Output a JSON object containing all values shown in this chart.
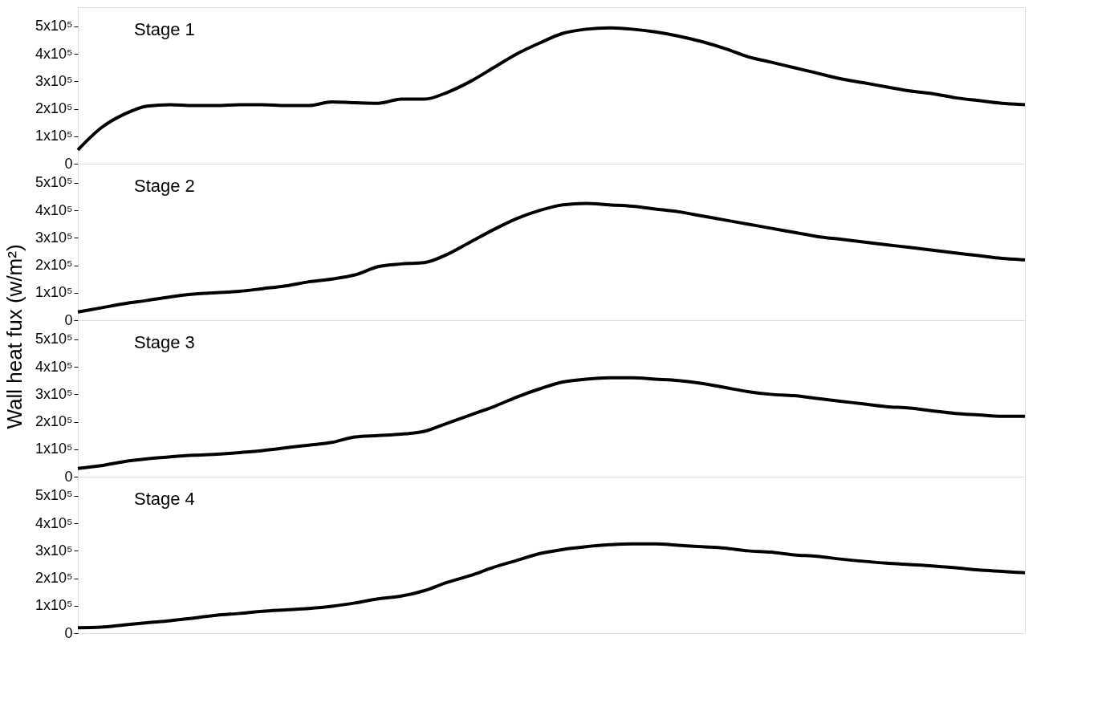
{
  "chart_data": [
    {
      "type": "line",
      "annotations": [
        "Stage 1"
      ],
      "tick_labels": "y",
      "ylim": [
        0,
        570000
      ],
      "yticks": [
        0,
        {
          "value": 100000,
          "label": "1x10⁵"
        },
        {
          "value": 200000,
          "label": "2x10⁵"
        },
        {
          "value": 300000,
          "label": "3x10⁵"
        },
        {
          "value": 400000,
          "label": "4x10⁵"
        },
        {
          "value": 500000,
          "label": "5x10⁵"
        }
      ],
      "categories": [
        null,
        null,
        null,
        null,
        null,
        null,
        null,
        null,
        null,
        null,
        null,
        null,
        null,
        null,
        null,
        null,
        null,
        null,
        null,
        null,
        null,
        null,
        null,
        null,
        null,
        null,
        null,
        null,
        null,
        null,
        null,
        null,
        null,
        null,
        null,
        null,
        null,
        null,
        null,
        null,
        null,
        null
      ],
      "series": [
        {
          "color": "#000000",
          "values": [
            50000,
            130000,
            180000,
            210000,
            215000,
            212000,
            212000,
            215000,
            215000,
            212000,
            212000,
            225000,
            222000,
            220000,
            235000,
            235000,
            260000,
            300000,
            350000,
            400000,
            440000,
            475000,
            490000,
            495000,
            490000,
            480000,
            465000,
            445000,
            420000,
            390000,
            370000,
            350000,
            330000,
            310000,
            295000,
            280000,
            265000,
            255000,
            240000,
            230000,
            220000,
            215000
          ]
        }
      ]
    },
    {
      "type": "line",
      "annotations": [
        "Stage 2"
      ],
      "ylabel": "Wall heat fux (w/m²)",
      "tick_labels": "y",
      "ylim": [
        0,
        570000
      ],
      "yticks": [
        0,
        {
          "value": 100000,
          "label": "1x10⁵"
        },
        {
          "value": 200000,
          "label": "2x10⁵"
        },
        {
          "value": 300000,
          "label": "3x10⁵"
        },
        {
          "value": 400000,
          "label": "4x10⁵"
        },
        {
          "value": 500000,
          "label": "5x10⁵"
        }
      ],
      "categories": [
        null,
        null,
        null,
        null,
        null,
        null,
        null,
        null,
        null,
        null,
        null,
        null,
        null,
        null,
        null,
        null,
        null,
        null,
        null,
        null,
        null,
        null,
        null,
        null,
        null,
        null,
        null,
        null,
        null,
        null,
        null,
        null,
        null,
        null,
        null,
        null,
        null,
        null,
        null,
        null,
        null,
        null
      ],
      "series": [
        {
          "color": "#000000",
          "values": [
            30000,
            45000,
            60000,
            72000,
            85000,
            95000,
            100000,
            105000,
            115000,
            125000,
            140000,
            150000,
            165000,
            195000,
            205000,
            210000,
            240000,
            285000,
            330000,
            370000,
            400000,
            420000,
            425000,
            420000,
            415000,
            405000,
            395000,
            380000,
            365000,
            350000,
            335000,
            320000,
            305000,
            295000,
            285000,
            275000,
            265000,
            255000,
            245000,
            235000,
            225000,
            220000
          ]
        }
      ]
    },
    {
      "type": "line",
      "annotations": [
        "Stage 3"
      ],
      "tick_labels": "y",
      "ylim": [
        0,
        570000
      ],
      "yticks": [
        0,
        {
          "value": 100000,
          "label": "1x10⁵"
        },
        {
          "value": 200000,
          "label": "2x10⁵"
        },
        {
          "value": 300000,
          "label": "3x10⁵"
        },
        {
          "value": 400000,
          "label": "4x10⁵"
        },
        {
          "value": 500000,
          "label": "5x10⁵"
        }
      ],
      "categories": [
        null,
        null,
        null,
        null,
        null,
        null,
        null,
        null,
        null,
        null,
        null,
        null,
        null,
        null,
        null,
        null,
        null,
        null,
        null,
        null,
        null,
        null,
        null,
        null,
        null,
        null,
        null,
        null,
        null,
        null,
        null,
        null,
        null,
        null,
        null,
        null,
        null,
        null,
        null,
        null,
        null,
        null
      ],
      "series": [
        {
          "color": "#000000",
          "values": [
            30000,
            40000,
            55000,
            65000,
            72000,
            78000,
            82000,
            88000,
            95000,
            105000,
            115000,
            125000,
            145000,
            150000,
            155000,
            165000,
            195000,
            225000,
            255000,
            290000,
            320000,
            345000,
            355000,
            360000,
            360000,
            355000,
            350000,
            340000,
            325000,
            310000,
            300000,
            295000,
            285000,
            275000,
            265000,
            255000,
            250000,
            240000,
            230000,
            225000,
            220000,
            220000
          ]
        }
      ]
    },
    {
      "type": "line",
      "annotations": [
        "Stage 4"
      ],
      "tick_labels": "y",
      "ylim": [
        0,
        570000
      ],
      "yticks": [
        0,
        {
          "value": 100000,
          "label": "1x10⁵"
        },
        {
          "value": 200000,
          "label": "2x10⁵"
        },
        {
          "value": 300000,
          "label": "3x10⁵"
        },
        {
          "value": 400000,
          "label": "4x10⁵"
        },
        {
          "value": 500000,
          "label": "5x10⁵"
        }
      ],
      "categories": [
        null,
        null,
        null,
        null,
        null,
        null,
        null,
        null,
        null,
        null,
        null,
        null,
        null,
        null,
        null,
        null,
        null,
        null,
        null,
        null,
        null,
        null,
        null,
        null,
        null,
        null,
        null,
        null,
        null,
        null,
        null,
        null,
        null,
        null,
        null,
        null,
        null,
        null,
        null,
        null,
        null,
        null
      ],
      "series": [
        {
          "color": "#000000",
          "values": [
            20000,
            22000,
            30000,
            38000,
            45000,
            55000,
            65000,
            72000,
            80000,
            85000,
            90000,
            98000,
            110000,
            125000,
            135000,
            155000,
            185000,
            210000,
            240000,
            265000,
            290000,
            305000,
            315000,
            322000,
            325000,
            325000,
            320000,
            315000,
            310000,
            300000,
            295000,
            285000,
            280000,
            270000,
            262000,
            255000,
            250000,
            245000,
            238000,
            230000,
            225000,
            220000
          ]
        }
      ]
    }
  ]
}
